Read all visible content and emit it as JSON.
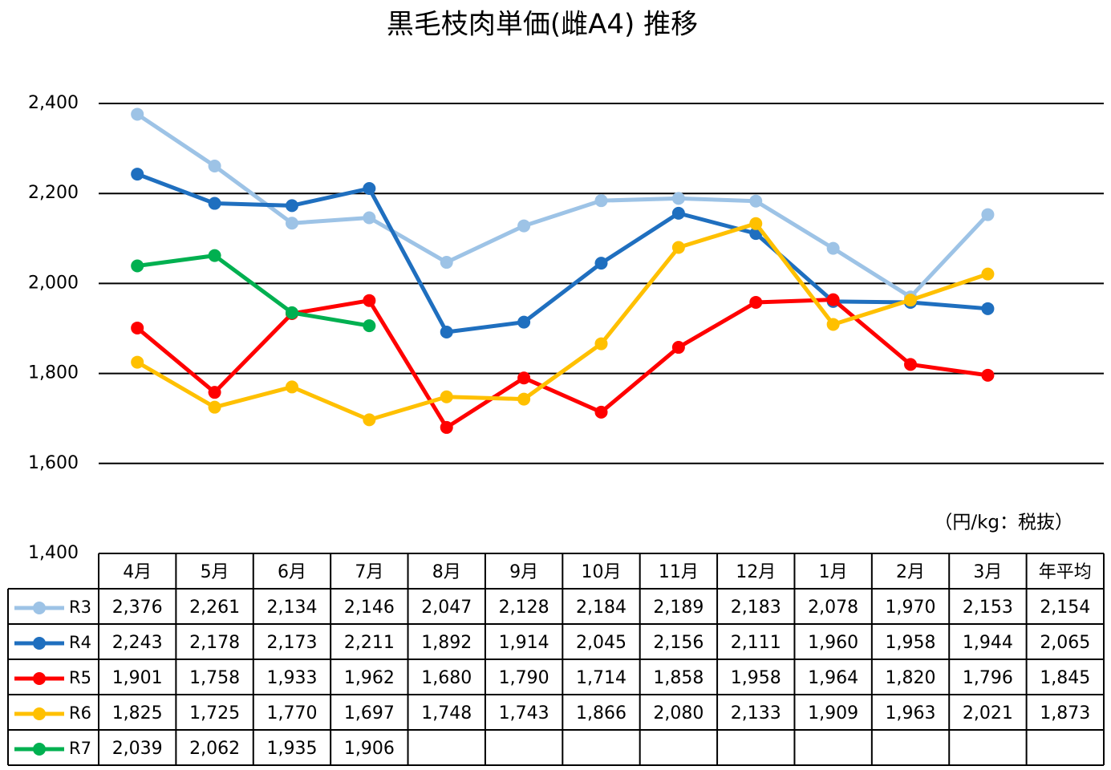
{
  "chart_data": {
    "type": "line",
    "title": "黒毛枝肉単価(雌A4) 推移",
    "annotation": "（円/kg：税抜）",
    "categories": [
      "4月",
      "5月",
      "6月",
      "7月",
      "8月",
      "9月",
      "10月",
      "11月",
      "12月",
      "1月",
      "2月",
      "3月"
    ],
    "average_header": "年平均",
    "ylim": [
      1400,
      2400
    ],
    "yticks": [
      {
        "value": 1400,
        "label": "1,400"
      },
      {
        "value": 1600,
        "label": "1,600"
      },
      {
        "value": 1800,
        "label": "1,800"
      },
      {
        "value": 2000,
        "label": "2,000"
      },
      {
        "value": 2200,
        "label": "2,200"
      },
      {
        "value": 2400,
        "label": "2,400"
      }
    ],
    "grid": true,
    "series": [
      {
        "name": "R3",
        "color": "#9dc3e6",
        "values": [
          2376,
          2261,
          2134,
          2146,
          2047,
          2128,
          2184,
          2189,
          2183,
          2078,
          1970,
          2153
        ],
        "value_labels": [
          "2,376",
          "2,261",
          "2,134",
          "2,146",
          "2,047",
          "2,128",
          "2,184",
          "2,189",
          "2,183",
          "2,078",
          "1,970",
          "2,153"
        ],
        "average": 2154,
        "average_label": "2,154"
      },
      {
        "name": "R4",
        "color": "#1f6fbf",
        "values": [
          2243,
          2178,
          2173,
          2211,
          1892,
          1914,
          2045,
          2156,
          2111,
          1960,
          1958,
          1944
        ],
        "value_labels": [
          "2,243",
          "2,178",
          "2,173",
          "2,211",
          "1,892",
          "1,914",
          "2,045",
          "2,156",
          "2,111",
          "1,960",
          "1,958",
          "1,944"
        ],
        "average": 2065,
        "average_label": "2,065"
      },
      {
        "name": "R5",
        "color": "#ff0000",
        "values": [
          1901,
          1758,
          1933,
          1962,
          1680,
          1790,
          1714,
          1858,
          1958,
          1964,
          1820,
          1796
        ],
        "value_labels": [
          "1,901",
          "1,758",
          "1,933",
          "1,962",
          "1,680",
          "1,790",
          "1,714",
          "1,858",
          "1,958",
          "1,964",
          "1,820",
          "1,796"
        ],
        "average": 1845,
        "average_label": "1,845"
      },
      {
        "name": "R6",
        "color": "#ffc000",
        "values": [
          1825,
          1725,
          1770,
          1697,
          1748,
          1743,
          1866,
          2080,
          2133,
          1909,
          1963,
          2021
        ],
        "value_labels": [
          "1,825",
          "1,725",
          "1,770",
          "1,697",
          "1,748",
          "1,743",
          "1,866",
          "2,080",
          "2,133",
          "1,909",
          "1,963",
          "2,021"
        ],
        "average": 1873,
        "average_label": "1,873"
      },
      {
        "name": "R7",
        "color": "#00b050",
        "values": [
          2039,
          2062,
          1935,
          1906,
          null,
          null,
          null,
          null,
          null,
          null,
          null,
          null
        ],
        "value_labels": [
          "2,039",
          "2,062",
          "1,935",
          "1,906",
          null,
          null,
          null,
          null,
          null,
          null,
          null,
          null
        ]
      }
    ]
  }
}
